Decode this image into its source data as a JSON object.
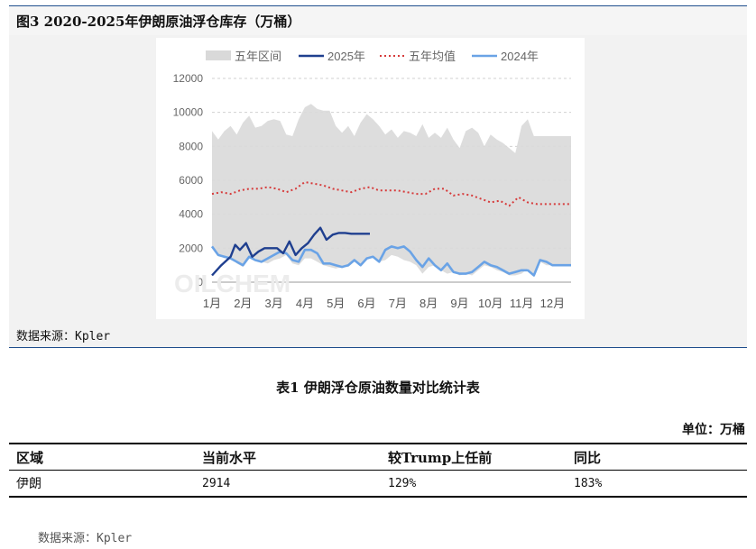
{
  "figure": {
    "title": "图3   2020-2025年伊朗原油浮仓库存（万桶）",
    "source": "数据来源：Kpler"
  },
  "chart_data": {
    "type": "area",
    "title": "",
    "xlabel": "",
    "ylabel": "",
    "ylim": [
      0,
      12000
    ],
    "yticks": [
      "0",
      "2000",
      "4000",
      "6000",
      "8000",
      "10000",
      "12000"
    ],
    "xticks": [
      "1月",
      "2月",
      "3月",
      "4月",
      "5月",
      "6月",
      "7月",
      "8月",
      "9月",
      "10月",
      "11月",
      "12月"
    ],
    "legend": [
      "五年区间",
      "2025年",
      "五年均值",
      "2024年"
    ],
    "legend_position": "top",
    "grid": true,
    "watermark": "OILCHEM",
    "colors": {
      "range": "#d9d9d9",
      "y2025": "#1f3f8f",
      "avg": "#d63b3b",
      "y2024": "#6aa3e6"
    },
    "x_range": [
      0,
      11.6
    ],
    "series": [
      {
        "name": "五年区间",
        "x": [
          0,
          0.2,
          0.4,
          0.6,
          0.8,
          1.0,
          1.2,
          1.4,
          1.6,
          1.8,
          2.0,
          2.2,
          2.4,
          2.6,
          2.8,
          3.0,
          3.2,
          3.4,
          3.6,
          3.8,
          4.0,
          4.2,
          4.4,
          4.6,
          4.8,
          5.0,
          5.2,
          5.4,
          5.6,
          5.8,
          6.0,
          6.2,
          6.4,
          6.6,
          6.8,
          7.0,
          7.2,
          7.4,
          7.6,
          7.8,
          8.0,
          8.2,
          8.4,
          8.6,
          8.8,
          9.0,
          9.2,
          9.4,
          9.6,
          9.8,
          10.0,
          10.2,
          10.4,
          10.6,
          10.8,
          11.0,
          11.2,
          11.4,
          11.6
        ],
        "upper": [
          8900,
          8400,
          8900,
          9200,
          8700,
          9400,
          9800,
          9100,
          9200,
          9500,
          9600,
          9500,
          8700,
          8600,
          9600,
          10300,
          10500,
          10200,
          10100,
          10100,
          9200,
          8800,
          9200,
          8600,
          9400,
          9900,
          9600,
          9200,
          8700,
          9000,
          8500,
          8900,
          8800,
          8600,
          9300,
          8500,
          8800,
          8500,
          9100,
          8400,
          7900,
          8900,
          9100,
          8800,
          8000,
          8700,
          8400,
          8200,
          7900,
          7600,
          9200,
          9600,
          8600,
          8600,
          8600,
          8600,
          8600,
          8600,
          8600
        ],
        "lower": [
          2100,
          1600,
          1400,
          1500,
          1100,
          900,
          1400,
          1400,
          1200,
          1100,
          1300,
          1400,
          1600,
          1100,
          1000,
          1400,
          1400,
          1200,
          1000,
          900,
          800,
          900,
          900,
          1200,
          1000,
          1400,
          1500,
          1200,
          1300,
          1600,
          1500,
          1300,
          1200,
          1000,
          500,
          900,
          1000,
          700,
          500,
          600,
          400,
          500,
          400,
          700,
          1000,
          900,
          700,
          600,
          400,
          400,
          500,
          800,
          400,
          1200,
          1000,
          1000,
          1000,
          1000,
          1000
        ]
      },
      {
        "name": "2025年",
        "x": [
          0,
          0.3,
          0.6,
          0.75,
          0.9,
          1.1,
          1.3,
          1.5,
          1.7,
          1.9,
          2.1,
          2.3,
          2.5,
          2.7,
          2.9,
          3.1,
          3.3,
          3.5,
          3.7,
          3.9,
          4.1,
          4.3,
          4.5,
          4.7,
          4.9,
          5.1
        ],
        "values": [
          400,
          1000,
          1500,
          2200,
          1900,
          2300,
          1500,
          1800,
          2000,
          2000,
          2000,
          1700,
          2400,
          1600,
          2000,
          2300,
          2800,
          3200,
          2500,
          2800,
          2900,
          2900,
          2850,
          2850,
          2850,
          2850
        ]
      },
      {
        "name": "五年均值",
        "x": [
          0,
          0.3,
          0.6,
          0.9,
          1.2,
          1.5,
          1.8,
          2.1,
          2.4,
          2.7,
          3.0,
          3.3,
          3.6,
          3.9,
          4.2,
          4.5,
          4.8,
          5.1,
          5.4,
          5.7,
          6.0,
          6.3,
          6.6,
          6.9,
          7.2,
          7.5,
          7.8,
          8.1,
          8.4,
          8.7,
          9.0,
          9.3,
          9.6,
          9.9,
          10.2,
          10.5,
          10.8,
          11.1,
          11.4,
          11.6
        ],
        "values": [
          5200,
          5300,
          5200,
          5400,
          5500,
          5500,
          5600,
          5500,
          5300,
          5500,
          5900,
          5800,
          5700,
          5500,
          5400,
          5300,
          5500,
          5600,
          5400,
          5400,
          5400,
          5300,
          5200,
          5200,
          5500,
          5500,
          5100,
          5200,
          5100,
          4900,
          4700,
          4800,
          4500,
          5000,
          4700,
          4600,
          4600,
          4600,
          4600,
          4600
        ]
      },
      {
        "name": "2024年",
        "x": [
          0,
          0.2,
          0.4,
          0.6,
          0.8,
          1.0,
          1.2,
          1.4,
          1.6,
          1.8,
          2.0,
          2.2,
          2.4,
          2.6,
          2.8,
          3.0,
          3.2,
          3.4,
          3.6,
          3.8,
          4.0,
          4.2,
          4.4,
          4.6,
          4.8,
          5.0,
          5.2,
          5.4,
          5.6,
          5.8,
          6.0,
          6.2,
          6.4,
          6.6,
          6.8,
          7.0,
          7.2,
          7.4,
          7.6,
          7.8,
          8.0,
          8.2,
          8.4,
          8.6,
          8.8,
          9.0,
          9.2,
          9.4,
          9.6,
          9.8,
          10.0,
          10.2,
          10.4,
          10.6,
          10.8,
          11.0,
          11.2,
          11.4,
          11.6
        ],
        "values": [
          2100,
          1600,
          1500,
          1400,
          1200,
          1000,
          1500,
          1300,
          1200,
          1400,
          1600,
          1800,
          1700,
          1300,
          1200,
          1900,
          1900,
          1700,
          1100,
          1100,
          1000,
          900,
          1000,
          1300,
          1000,
          1400,
          1500,
          1200,
          1900,
          2100,
          2000,
          2100,
          1800,
          1300,
          900,
          1400,
          1000,
          700,
          1100,
          600,
          500,
          500,
          600,
          900,
          1200,
          1000,
          900,
          700,
          500,
          600,
          700,
          700,
          400,
          1300,
          1200,
          1000,
          1000,
          1000,
          1000
        ]
      }
    ]
  },
  "table": {
    "title": "表1 伊朗浮仓原油数量对比统计表",
    "unit": "单位：万桶",
    "headers": [
      "区域",
      "当前水平",
      "较Trump上任前",
      "同比"
    ],
    "rows": [
      [
        "伊朗",
        "2914",
        "129%",
        "183%"
      ]
    ],
    "source": "数据来源：Kpler"
  }
}
